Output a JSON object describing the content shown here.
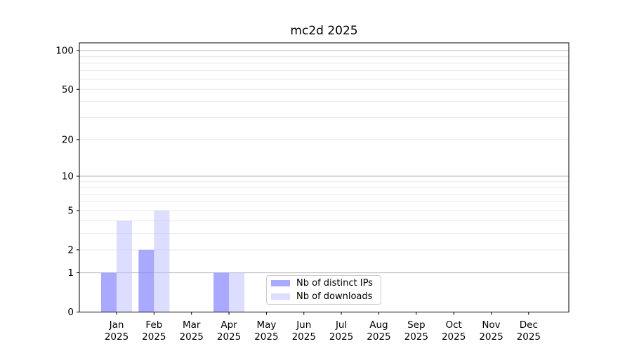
{
  "chart_data": {
    "type": "bar",
    "title": "mc2d 2025",
    "categories": [
      "Jan",
      "Feb",
      "Mar",
      "Apr",
      "May",
      "Jun",
      "Jul",
      "Aug",
      "Sep",
      "Oct",
      "Nov",
      "Dec"
    ],
    "x_year_line": "2025",
    "series": [
      {
        "name": "Nb of distinct IPs",
        "fill": "#8888ff",
        "fill_opacity": 0.72,
        "values": [
          1,
          2,
          0,
          1,
          0,
          0,
          0,
          0,
          0,
          0,
          0,
          0
        ]
      },
      {
        "name": "Nb of downloads",
        "fill": "#bbbbff",
        "fill_opacity": 0.5,
        "values": [
          4,
          5,
          0,
          1,
          0,
          0,
          0,
          0,
          0,
          0,
          0,
          0
        ]
      }
    ],
    "yscale": "log1p",
    "ylim": [
      0,
      115
    ],
    "y_tick_values": [
      0,
      1,
      2,
      5,
      10,
      20,
      50,
      100
    ],
    "y_tick_labels": [
      "0",
      "1",
      "2",
      "5",
      "10",
      "20",
      "50",
      "100"
    ],
    "y_major_gridlines": [
      1,
      10,
      100
    ],
    "y_minor_gridlines": [
      2,
      3,
      4,
      5,
      6,
      7,
      8,
      9,
      20,
      30,
      40,
      50,
      60,
      70,
      80,
      90
    ],
    "grid": true,
    "legend_position": "lower-center",
    "colors": {
      "major_grid": "#b3b3b3",
      "minor_grid": "#e9e9e9",
      "axis": "#000000",
      "text": "#000000"
    }
  }
}
